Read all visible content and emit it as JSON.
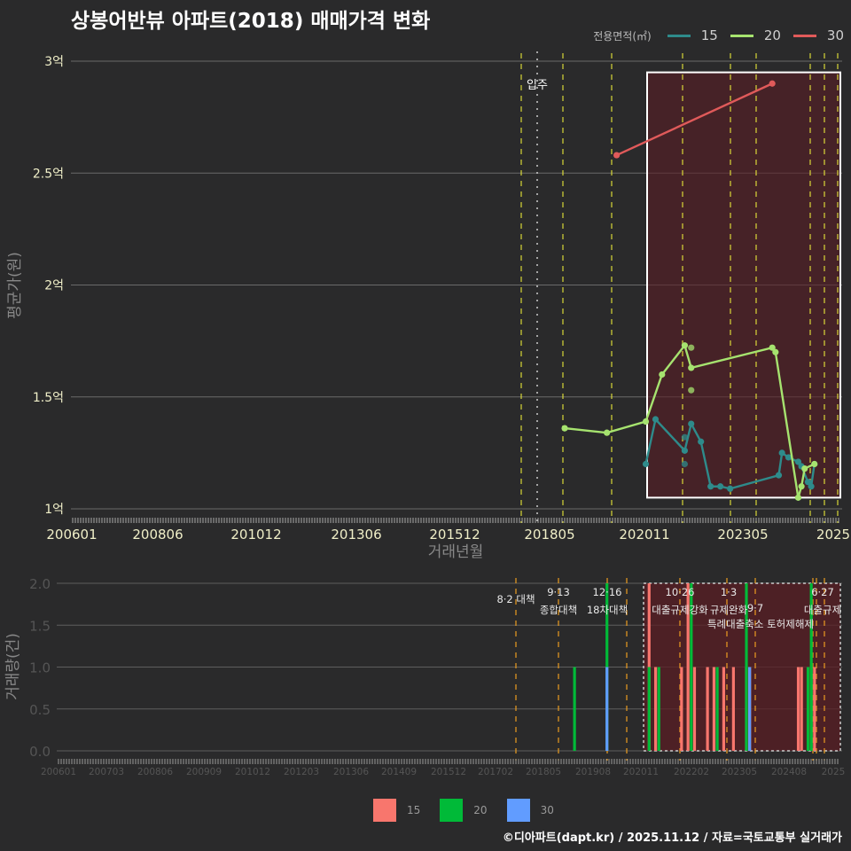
{
  "title": "상봉어반뷰 아파트(2018) 매매가격 변화",
  "legend_top": {
    "label": "전용면적(㎡)",
    "items": [
      {
        "name": "15",
        "color": "#2e8b8b"
      },
      {
        "name": "20",
        "color": "#a6e36f"
      },
      {
        "name": "30",
        "color": "#e05a5a"
      }
    ]
  },
  "legend_bottom": {
    "items": [
      {
        "name": "15",
        "color": "#f8766d"
      },
      {
        "name": "20",
        "color": "#00ba38"
      },
      {
        "name": "30",
        "color": "#619cff"
      }
    ]
  },
  "credit": "©디아파트(dapt.kr) / 2025.11.12 / 자료=국토교통부 실거래가",
  "chart_data": [
    {
      "type": "line",
      "title": "상봉어반뷰 아파트(2018) 매매가격 변화",
      "xlabel": "거래년월",
      "ylabel": "평균가(원)",
      "x_tick_labels": [
        "200601",
        "200806",
        "201012",
        "201306",
        "201512",
        "201805",
        "202011",
        "202305",
        "2025"
      ],
      "y_tick_labels": [
        "1억",
        "1.5억",
        "2억",
        "2.5억",
        "3억"
      ],
      "ylim": [
        1.0,
        3.0
      ],
      "y_unit": "억원",
      "annotation": "입주",
      "highlight_box": {
        "x_start": "202011",
        "x_end": "2025",
        "y_start": 1.05,
        "y_end": 2.95
      },
      "series": [
        {
          "name": "15",
          "color": "#2e8b8b",
          "points": [
            [
              "202010",
              1.2
            ],
            [
              "202101",
              1.4
            ],
            [
              "202110",
              1.26
            ],
            [
              "202112",
              1.38
            ],
            [
              "202203",
              1.3
            ],
            [
              "202206",
              1.1
            ],
            [
              "202209",
              1.1
            ],
            [
              "202212",
              1.09
            ],
            [
              "202403",
              1.15
            ],
            [
              "202404",
              1.25
            ],
            [
              "202406",
              1.23
            ],
            [
              "202409",
              1.21
            ],
            [
              "202410",
              1.19
            ],
            [
              "202412",
              1.12
            ],
            [
              "202501",
              1.1
            ],
            [
              "202502",
              1.2
            ]
          ],
          "extra_points": [
            [
              "202110",
              1.32
            ],
            [
              "202110",
              1.2
            ]
          ]
        },
        {
          "name": "20",
          "color": "#a6e36f",
          "points": [
            [
              "201809",
              1.36
            ],
            [
              "201910",
              1.34
            ],
            [
              "202010",
              1.39
            ],
            [
              "202103",
              1.6
            ],
            [
              "202110",
              1.73
            ],
            [
              "202112",
              1.63
            ],
            [
              "202401",
              1.72
            ],
            [
              "202402",
              1.7
            ],
            [
              "202409",
              1.05
            ],
            [
              "202410",
              1.1
            ],
            [
              "202411",
              1.18
            ],
            [
              "202502",
              1.2
            ]
          ],
          "extra_points": [
            [
              "202112",
              1.72
            ],
            [
              "202112",
              1.53
            ]
          ]
        },
        {
          "name": "30",
          "color": "#e05a5a",
          "points": [
            [
              "202001",
              2.58
            ],
            [
              "202401",
              2.9
            ]
          ]
        }
      ]
    },
    {
      "type": "bar",
      "xlabel": "",
      "ylabel": "거래량(건)",
      "x_tick_labels": [
        "200601",
        "200703",
        "200806",
        "200909",
        "201012",
        "201203",
        "201306",
        "201409",
        "201512",
        "201702",
        "201805",
        "201908",
        "202011",
        "202202",
        "202305",
        "202408",
        "2025"
      ],
      "y_tick_labels": [
        "0.0",
        "0.5",
        "1.0",
        "1.5",
        "2.0"
      ],
      "ylim": [
        0,
        2
      ],
      "policy_annotations": [
        {
          "date": "8·2",
          "label": "8·2 대책"
        },
        {
          "date": "9·13",
          "label": "종합대책"
        },
        {
          "date": "12·16",
          "label": "18차대책"
        },
        {
          "date": "10·26",
          "label": "대출규제강화"
        },
        {
          "date": "1·3",
          "label": "규제완화"
        },
        {
          "date": "9·7",
          "label": "특례대출축소 토허제해제"
        },
        {
          "date": "6·27",
          "label": "대출규제"
        }
      ],
      "series": [
        {
          "name": "15",
          "color": "#f8766d",
          "bars": [
            [
              "202011",
              2
            ],
            [
              "202101",
              1
            ],
            [
              "202109",
              1
            ],
            [
              "202111",
              2
            ],
            [
              "202201",
              1
            ],
            [
              "202205",
              1
            ],
            [
              "202207",
              1
            ],
            [
              "202210",
              1
            ],
            [
              "202301",
              1
            ],
            [
              "202305",
              1
            ],
            [
              "202306",
              1
            ],
            [
              "202409",
              1
            ],
            [
              "202410",
              1
            ],
            [
              "202501",
              1
            ],
            [
              "202502",
              1
            ]
          ]
        },
        {
          "name": "20",
          "color": "#00ba38",
          "bars": [
            [
              "201812",
              1
            ],
            [
              "201910",
              2
            ],
            [
              "202011",
              1
            ],
            [
              "202102",
              1
            ],
            [
              "202112",
              2
            ],
            [
              "202208",
              1
            ],
            [
              "202305",
              2
            ],
            [
              "202412",
              1
            ],
            [
              "202501",
              2
            ]
          ]
        },
        {
          "name": "30",
          "color": "#619cff",
          "bars": [
            [
              "201910",
              1
            ],
            [
              "202306",
              1
            ]
          ]
        }
      ]
    }
  ]
}
